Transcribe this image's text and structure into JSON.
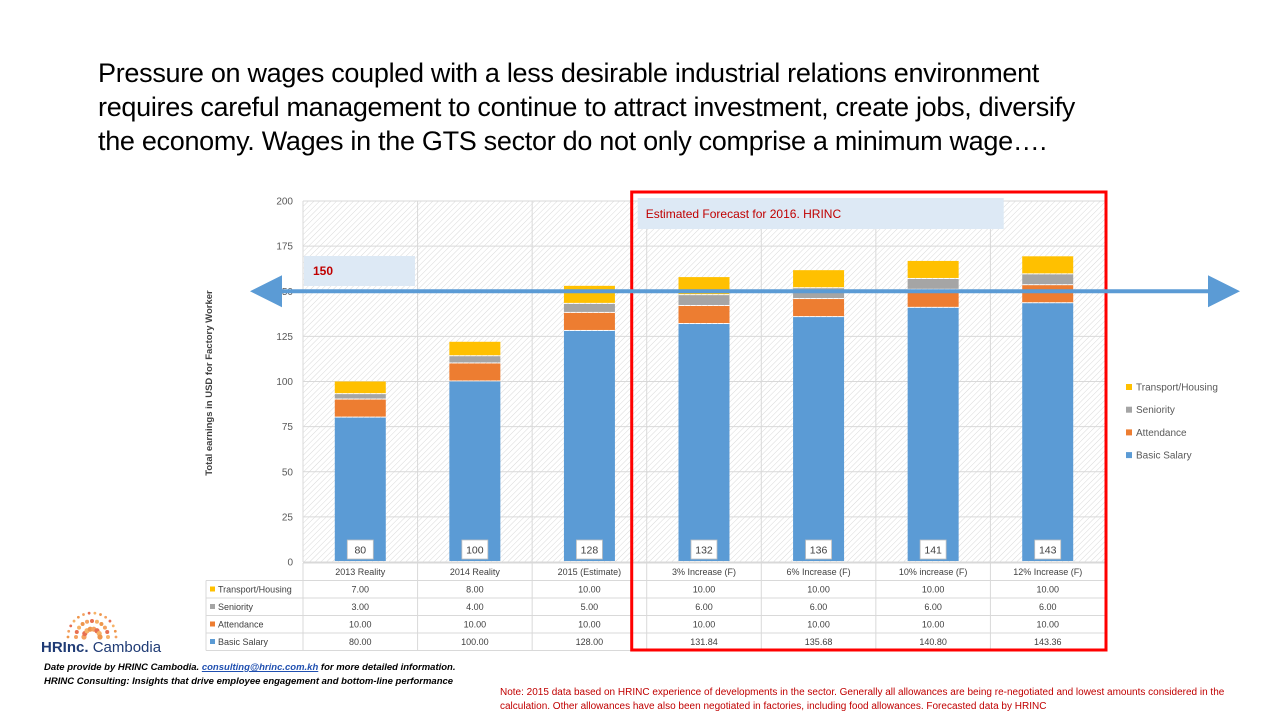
{
  "title_lines": [
    "Pressure on wages coupled with a less desirable industrial relations environment",
    "requires careful management to continue to attract investment, create jobs, diversify",
    "the economy.  Wages in the GTS sector do not only comprise a minimum wage…."
  ],
  "chart_data": {
    "type": "bar",
    "stacked": true,
    "categories": [
      "2013 Reality",
      "2014 Reality",
      "2015 (Estimate)",
      "3% Increase (F)",
      "6% Increase (F)",
      "10% increase (F)",
      "12% Increase (F)"
    ],
    "series": [
      {
        "name": "Basic Salary",
        "color": "#5b9bd5",
        "values": [
          80.0,
          100.0,
          128.0,
          131.84,
          135.68,
          140.8,
          143.36
        ],
        "table_values": [
          "80.00",
          "100.00",
          "128.00",
          "131.84",
          "135.68",
          "140.80",
          "143.36"
        ],
        "data_labels": [
          "80",
          "100",
          "128",
          "132",
          "136",
          "141",
          "143"
        ]
      },
      {
        "name": "Attendance",
        "color": "#ed7d31",
        "values": [
          10,
          10,
          10,
          10,
          10,
          10,
          10
        ],
        "table_values": [
          "10.00",
          "10.00",
          "10.00",
          "10.00",
          "10.00",
          "10.00",
          "10.00"
        ]
      },
      {
        "name": "Seniority",
        "color": "#a5a5a5",
        "values": [
          3,
          4,
          5,
          6,
          6,
          6,
          6
        ],
        "table_values": [
          "3.00",
          "4.00",
          "5.00",
          "6.00",
          "6.00",
          "6.00",
          "6.00"
        ]
      },
      {
        "name": "Transport/Housing",
        "color": "#ffc000",
        "values": [
          7,
          8,
          10,
          10,
          10,
          10,
          10
        ],
        "table_values": [
          "7.00",
          "8.00",
          "10.00",
          "10.00",
          "10.00",
          "10.00",
          "10.00"
        ]
      }
    ],
    "ylabel": "Total earnings in USD for Factory Worker",
    "ylim": [
      0,
      200
    ],
    "yticks": [
      "0",
      "25",
      "50",
      "75",
      "100",
      "125",
      "150",
      "175",
      "200"
    ],
    "reference_line": {
      "value": 150,
      "label": "150",
      "color": "#5b9bd5"
    },
    "forecast_box": {
      "label": "Estimated Forecast for 2016. HRINC",
      "from_category": 3,
      "to_category": 6,
      "color": "#ff0000"
    },
    "legend_position": "right"
  },
  "logo": {
    "brand": "HRInc.",
    "region": "Cambodia"
  },
  "footer": {
    "line1_prefix": "Date provide by HRINC Cambodia.  ",
    "email": "consulting@hrinc.com.kh",
    "line1_suffix": " for more detailed information.",
    "line2": "HRINC Consulting: Insights that drive employee engagement and bottom-line performance"
  },
  "note": "Note:  2015 data based on HRINC experience of developments in the sector.  Generally all allowances are being re-negotiated and lowest amounts considered in the calculation.  Other allowances have also been negotiated in factories, including food allowances.  Forecasted data by HRINC"
}
